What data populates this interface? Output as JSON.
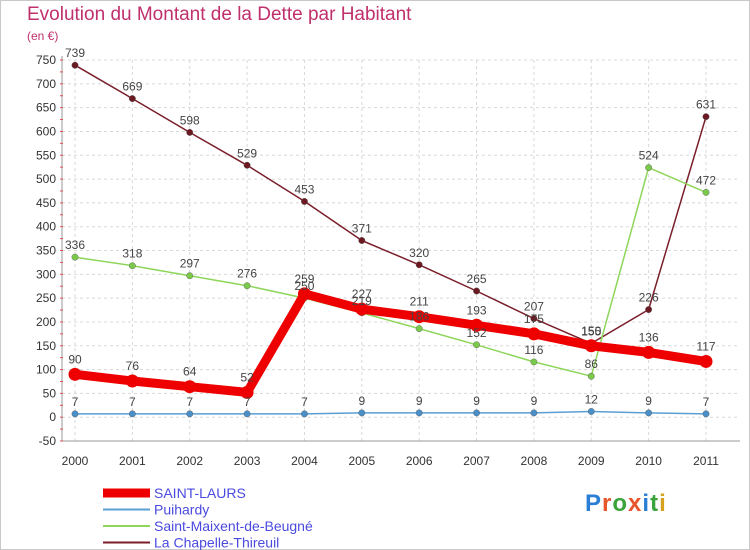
{
  "header": {
    "title": "Evolution du Montant de la Dette par Habitant",
    "unit": "(en €)"
  },
  "logo": {
    "text": "Proxiti",
    "colors": [
      "#2a7fd4",
      "#e8552a",
      "#3aa33a",
      "#e8552a",
      "#2a7fd4",
      "#3aa33a",
      "#d6a21e"
    ]
  },
  "chart_data": {
    "type": "line",
    "x": [
      2000,
      2001,
      2002,
      2003,
      2004,
      2005,
      2006,
      2007,
      2008,
      2009,
      2010,
      2011
    ],
    "ylim": [
      -50,
      750
    ],
    "yticks": [
      -50,
      0,
      50,
      100,
      150,
      200,
      250,
      300,
      350,
      400,
      450,
      500,
      550,
      600,
      650,
      700,
      750
    ],
    "grid": true,
    "legend_position": "bottom-left",
    "series": [
      {
        "name": "La Chapelle-Thireuil",
        "color": "#7a1f2a",
        "marker": "#6b1a22",
        "width": 1.5,
        "values": [
          739,
          669,
          598,
          529,
          453,
          371,
          320,
          265,
          207,
          155,
          226,
          631
        ]
      },
      {
        "name": "Saint-Maixent-de-Beugné",
        "color": "#8ed65a",
        "marker": "#7ac94a",
        "width": 1.5,
        "values": [
          336,
          318,
          297,
          276,
          250,
          219,
          186,
          152,
          116,
          86,
          524,
          472
        ]
      },
      {
        "name": "Puihardy",
        "color": "#5a9fd4",
        "marker": "#4a8fc8",
        "width": 1.5,
        "values": [
          7,
          7,
          7,
          7,
          7,
          9,
          9,
          9,
          9,
          12,
          9,
          7
        ]
      },
      {
        "name": "SAINT-LAURS",
        "color": "#ee0000",
        "marker": "#ee0000",
        "width": 9,
        "values": [
          90,
          76,
          64,
          52,
          259,
          227,
          211,
          193,
          175,
          150,
          136,
          117
        ]
      }
    ],
    "legend": [
      "SAINT-LAURS",
      "Puihardy",
      "Saint-Maixent-de-Beugné",
      "La Chapelle-Thireuil"
    ]
  }
}
